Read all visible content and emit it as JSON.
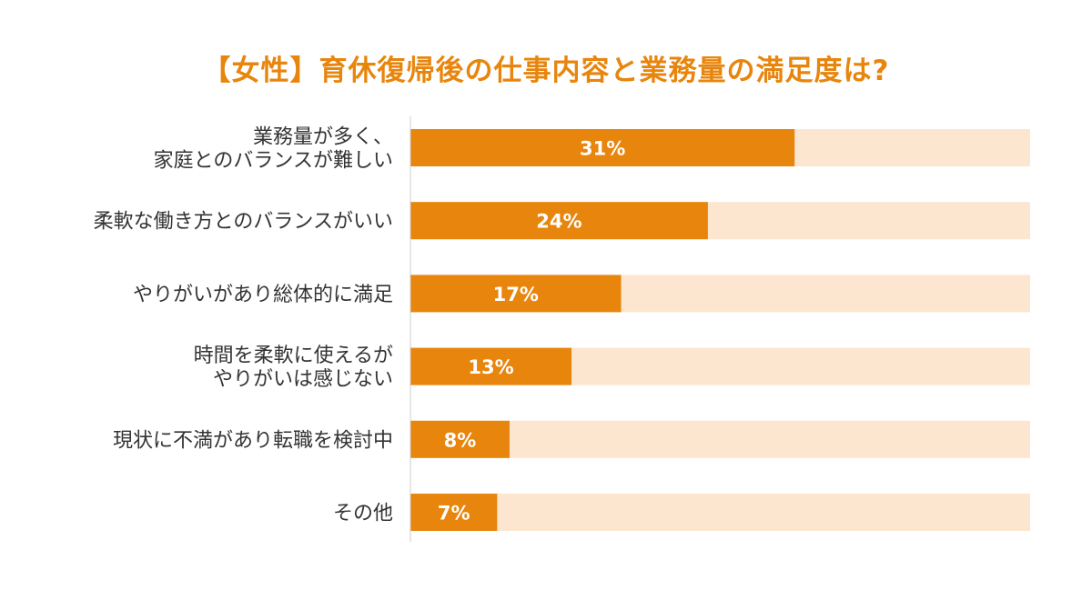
{
  "chart_data": {
    "type": "bar",
    "orientation": "horizontal",
    "title": "【女性】育休復帰後の仕事内容と業務量の満足度は?",
    "categories": [
      [
        "業務量が多く、",
        "家庭とのバランスが難しい"
      ],
      [
        "柔軟な働き方とのバランスがいい"
      ],
      [
        "やりがいがあり総体的に満足"
      ],
      [
        "時間を柔軟に使えるが",
        "やりがいは感じない"
      ],
      [
        "現状に不満があり転職を検討中"
      ],
      [
        "その他"
      ]
    ],
    "values": [
      31,
      24,
      17,
      13,
      8,
      7
    ],
    "value_labels": [
      "31%",
      "24%",
      "17%",
      "13%",
      "8%",
      "7%"
    ],
    "xlim": [
      0,
      50
    ],
    "unit": "%",
    "grid": false,
    "legend": "none",
    "colors": {
      "bar": "#e8850d",
      "track": "#fce6cf",
      "title": "#e8850d",
      "axis": "#cccccc",
      "label": "#333333"
    }
  }
}
